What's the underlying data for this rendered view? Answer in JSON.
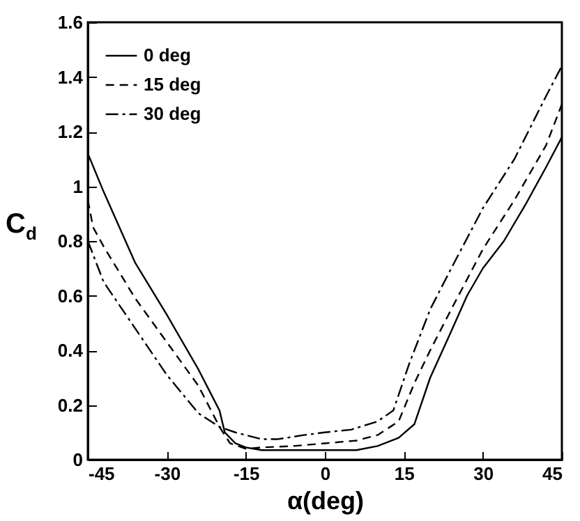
{
  "chart_data": {
    "type": "line",
    "xlabel": "α(deg)",
    "ylabel": "C$_{d}$",
    "xlim": [
      -45,
      45
    ],
    "xticks": [
      -45,
      -30,
      -15,
      0,
      15,
      30,
      45
    ],
    "ylim": [
      0,
      1.6
    ],
    "yticks": [
      0,
      0.2,
      0.4,
      0.6,
      0.8,
      1,
      1.2,
      1.4,
      1.6
    ],
    "grid": false,
    "legend": "top left",
    "marker": "none",
    "series": [
      {
        "name": "0 deg",
        "color": "#000000",
        "line_style": "solid",
        "x": [
          -45,
          -42,
          -36,
          -30,
          -24,
          -20,
          -19,
          -17,
          -15,
          -12,
          0,
          6,
          10,
          14,
          17,
          20,
          24,
          27,
          30,
          34,
          38,
          42,
          45
        ],
        "values": [
          1.12,
          0.98,
          0.72,
          0.53,
          0.33,
          0.18,
          0.1,
          0.06,
          0.045,
          0.035,
          0.035,
          0.035,
          0.05,
          0.08,
          0.13,
          0.3,
          0.47,
          0.6,
          0.7,
          0.8,
          0.93,
          1.07,
          1.18
        ]
      },
      {
        "name": "15 deg",
        "color": "#000000",
        "line_style": "dashed",
        "x": [
          -45,
          -44,
          -42,
          -36,
          -30,
          -24,
          -20,
          -18,
          -15,
          -12,
          -6,
          0,
          6,
          10,
          14,
          17,
          20,
          24,
          30,
          36,
          42,
          45
        ],
        "values": [
          0.95,
          0.85,
          0.78,
          0.59,
          0.43,
          0.27,
          0.12,
          0.06,
          0.04,
          0.045,
          0.05,
          0.06,
          0.07,
          0.09,
          0.14,
          0.28,
          0.4,
          0.55,
          0.77,
          0.95,
          1.15,
          1.3
        ]
      },
      {
        "name": "30 deg",
        "color": "#000000",
        "line_style": "dashdot",
        "x": [
          -45,
          -42,
          -36,
          -30,
          -24,
          -20,
          -17,
          -12,
          -9,
          -4,
          0,
          5,
          10,
          13,
          16,
          20,
          24,
          30,
          36,
          42,
          45
        ],
        "values": [
          0.8,
          0.65,
          0.48,
          0.31,
          0.17,
          0.12,
          0.1,
          0.075,
          0.075,
          0.09,
          0.1,
          0.11,
          0.14,
          0.18,
          0.35,
          0.55,
          0.7,
          0.92,
          1.1,
          1.33,
          1.44
        ]
      }
    ]
  }
}
